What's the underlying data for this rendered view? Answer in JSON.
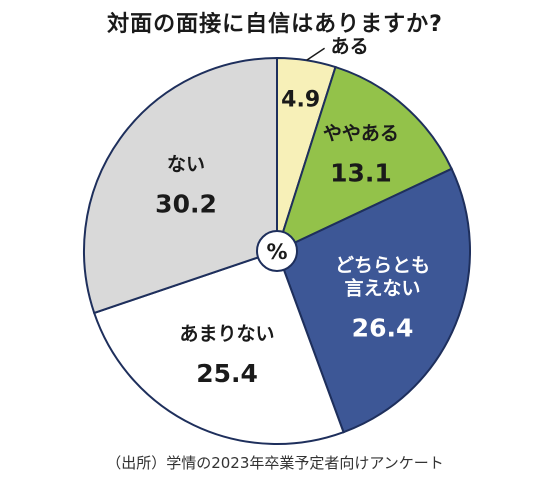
{
  "chart_data": {
    "type": "pie",
    "title": "対面の面接に自信はありますか?",
    "center_label": "%",
    "source": "（出所）学情の2023年卒業予定者向けアンケート",
    "slices": [
      {
        "label": "ある",
        "value": 4.9,
        "value_text": "4.9",
        "color": "#f7f0b8",
        "text_color": "#1a1a1a"
      },
      {
        "label": "ややある",
        "value": 13.1,
        "value_text": "13.1",
        "color": "#93c24a",
        "text_color": "#1a1a1a"
      },
      {
        "label": "どちらとも言えない",
        "label_lines": [
          "どちらとも",
          "言えない"
        ],
        "value": 26.4,
        "value_text": "26.4",
        "color": "#3d5796",
        "text_color": "#ffffff"
      },
      {
        "label": "あまりない",
        "value": 25.4,
        "value_text": "25.4",
        "color": "#ffffff",
        "text_color": "#1a1a1a"
      },
      {
        "label": "ない",
        "value": 30.2,
        "value_text": "30.2",
        "color": "#d9d9d9",
        "text_color": "#1a1a1a"
      }
    ]
  }
}
